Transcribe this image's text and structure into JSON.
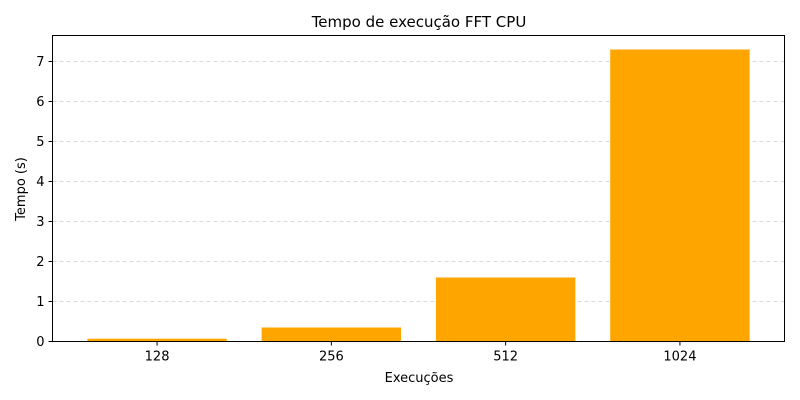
{
  "chart_data": {
    "type": "bar",
    "title": "Tempo de execução FFT CPU",
    "xlabel": "Execuções",
    "ylabel": "Tempo (s)",
    "categories": [
      "128",
      "256",
      "512",
      "1024"
    ],
    "values": [
      0.07,
      0.35,
      1.6,
      7.3
    ],
    "ylim": [
      0,
      7.65
    ],
    "yticks": [
      0,
      1,
      2,
      3,
      4,
      5,
      6,
      7
    ],
    "grid": "y-dashed",
    "bar_color": "#FFA500"
  }
}
